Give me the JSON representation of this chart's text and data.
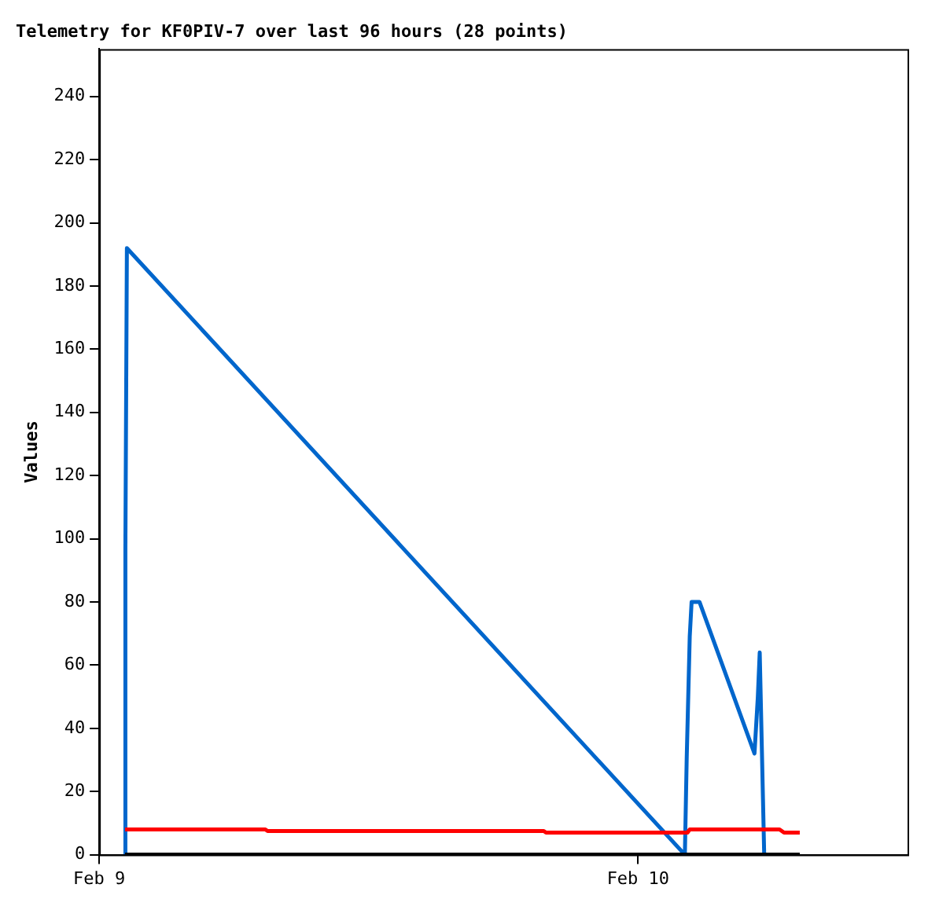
{
  "chart_data": {
    "type": "line",
    "title": "Telemetry for KF0PIV-7 over last 96 hours (28 points)",
    "ylabel": "Values",
    "xlim": [
      "--02-09",
      "--02-10T12:00"
    ],
    "xticks": [
      {
        "value": "--02-09",
        "label": "Feb 9"
      },
      {
        "value": "--02-10",
        "label": "Feb 10"
      }
    ],
    "ylim": [
      0,
      255
    ],
    "yticks": [
      0,
      20,
      40,
      60,
      80,
      100,
      120,
      140,
      160,
      180,
      200,
      220,
      240
    ],
    "grid": false,
    "legend": false,
    "marker": "none",
    "line_style": "solid",
    "series": [
      {
        "color": "#000000",
        "x": [
          "--02-09T01:09",
          "--02-10T07:12"
        ],
        "values": [
          0,
          0
        ]
      },
      {
        "color": "#ff0000",
        "x": [
          "--02-09T01:09",
          "--02-09T07:24",
          "--02-09T07:30",
          "--02-09T19:48",
          "--02-09T19:54",
          "--02-10T02:12",
          "--02-10T02:18",
          "--02-10T06:18",
          "--02-10T06:30",
          "--02-10T07:12"
        ],
        "values": [
          8,
          8,
          7.5,
          7.5,
          7,
          7,
          8,
          8,
          7,
          7
        ]
      },
      {
        "color": "#0066cc",
        "x": [
          "--02-09T01:09",
          "--02-09T01:10",
          "--02-09T01:14",
          "--02-10T02:05",
          "--02-10T02:10",
          "--02-10T02:14",
          "--02-10T02:18",
          "--02-10T02:23",
          "--02-10T02:44",
          "--02-10T05:11",
          "--02-10T05:20",
          "--02-10T05:25",
          "--02-10T05:29",
          "--02-10T05:37",
          "--02-10T05:41"
        ],
        "values": [
          0,
          97,
          192,
          0,
          31,
          50,
          69,
          80,
          80,
          32,
          50,
          64,
          64,
          0,
          0
        ]
      }
    ]
  }
}
